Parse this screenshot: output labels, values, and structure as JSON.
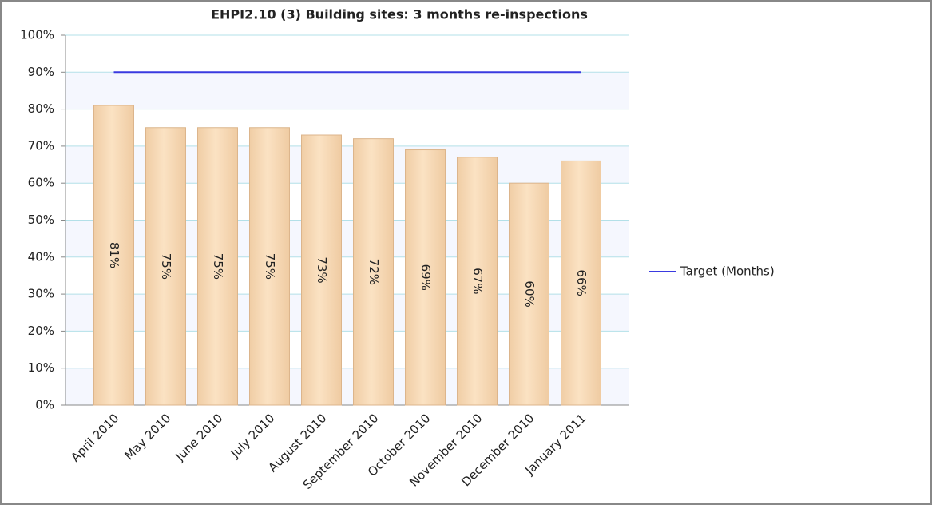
{
  "chart_data": {
    "type": "bar",
    "title": "EHPI2.10 (3) Building sites: 3 months re-inspections",
    "categories": [
      "April 2010",
      "May 2010",
      "June 2010",
      "July 2010",
      "August 2010",
      "September 2010",
      "October 2010",
      "November 2010",
      "December 2010",
      "January 2011"
    ],
    "values": [
      81,
      75,
      75,
      75,
      73,
      72,
      69,
      67,
      60,
      66
    ],
    "value_labels": [
      "81%",
      "75%",
      "75%",
      "75%",
      "73%",
      "72%",
      "69%",
      "67%",
      "60%",
      "66%"
    ],
    "color": "#f8d9b4",
    "series": [
      {
        "name": "Target (Months)",
        "color": "#3a3ae0",
        "values": [
          90,
          90,
          90,
          90,
          90,
          90,
          90,
          90,
          90,
          90
        ]
      }
    ],
    "ylim": [
      0,
      100
    ],
    "yticks": [
      {
        "value": 0,
        "label": "0%"
      },
      {
        "value": 10,
        "label": "10%"
      },
      {
        "value": 20,
        "label": "20%"
      },
      {
        "value": 30,
        "label": "30%"
      },
      {
        "value": 40,
        "label": "40%"
      },
      {
        "value": 50,
        "label": "50%"
      },
      {
        "value": 60,
        "label": "60%"
      },
      {
        "value": 70,
        "label": "70%"
      },
      {
        "value": 80,
        "label": "80%"
      },
      {
        "value": 90,
        "label": "90%"
      },
      {
        "value": 100,
        "label": "100%"
      }
    ],
    "grid": true,
    "legend": "right"
  }
}
